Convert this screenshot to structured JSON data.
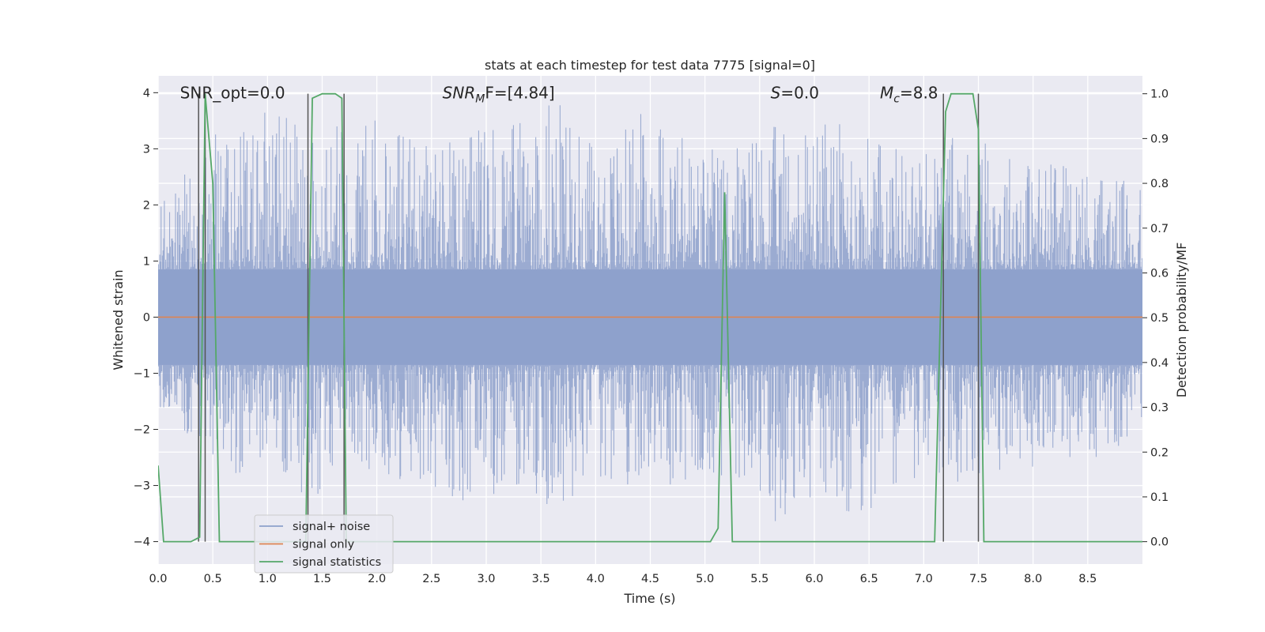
{
  "chart_data": {
    "type": "line",
    "title": "stats at each timestep for test data 7775 [signal=0]",
    "xlabel": "Time (s)",
    "ylabel_left": "Whitened strain",
    "ylabel_right": "Detection probability/MF",
    "xlim": [
      0.0,
      9.0
    ],
    "ylim_left": [
      -4.4,
      4.3
    ],
    "ylim_right": [
      -0.05,
      1.04
    ],
    "xticks": [
      0.0,
      0.5,
      1.0,
      1.5,
      2.0,
      2.5,
      3.0,
      3.5,
      4.0,
      4.5,
      5.0,
      5.5,
      6.0,
      6.5,
      7.0,
      7.5,
      8.0,
      8.5
    ],
    "xtick_labels": [
      "0.0",
      "0.5",
      "1.0",
      "1.5",
      "2.0",
      "2.5",
      "3.0",
      "3.5",
      "4.0",
      "4.5",
      "5.0",
      "5.5",
      "6.0",
      "6.5",
      "7.0",
      "7.5",
      "8.0",
      "8.5"
    ],
    "yticks_left": [
      -4,
      -3,
      -2,
      -1,
      0,
      1,
      2,
      3,
      4
    ],
    "ytick_labels_left": [
      "−4",
      "−3",
      "−2",
      "−1",
      "0",
      "1",
      "2",
      "3",
      "4"
    ],
    "yticks_right": [
      0.0,
      0.1,
      0.2,
      0.3,
      0.4,
      0.5,
      0.6,
      0.7,
      0.8,
      0.9,
      1.0
    ],
    "ytick_labels_right": [
      "0.0",
      "0.1",
      "0.2",
      "0.3",
      "0.4",
      "0.5",
      "0.6",
      "0.7",
      "0.8",
      "0.9",
      "1.0"
    ],
    "grid": true,
    "legend_position": "lower-left",
    "annotations": [
      {
        "text": "SNR_opt=0.0",
        "x": 0.2,
        "y": 4.0
      },
      {
        "base": "SNR",
        "sub": "M",
        "rest": "F=[4.84]",
        "x": 2.6,
        "y": 4.0
      },
      {
        "base": "S",
        "sub": "",
        "rest": "=0.0",
        "x": 5.6,
        "y": 4.0
      },
      {
        "base": "M",
        "sub": "c",
        "rest": "=8.8",
        "x": 6.6,
        "y": 4.0
      }
    ],
    "series": [
      {
        "name": "signal+ noise",
        "color": "#8da0cb",
        "axis": "left",
        "envelope": {
          "upper": [
            [
              0.0,
              2.2
            ],
            [
              0.1,
              2.4
            ],
            [
              0.5,
              3.3
            ],
            [
              1.0,
              3.7
            ],
            [
              1.4,
              3.4
            ],
            [
              2.0,
              3.6
            ],
            [
              2.5,
              3.0
            ],
            [
              3.0,
              3.4
            ],
            [
              3.3,
              3.5
            ],
            [
              3.6,
              4.0
            ],
            [
              4.0,
              3.0
            ],
            [
              4.5,
              3.8
            ],
            [
              4.8,
              3.3
            ],
            [
              5.2,
              3.0
            ],
            [
              5.5,
              3.5
            ],
            [
              5.9,
              3.3
            ],
            [
              6.0,
              3.6
            ],
            [
              6.5,
              3.3
            ],
            [
              6.9,
              3.0
            ],
            [
              7.3,
              3.3
            ],
            [
              7.8,
              3.0
            ],
            [
              8.3,
              2.8
            ],
            [
              8.9,
              2.4
            ]
          ],
          "lower": [
            [
              0.0,
              -1.6
            ],
            [
              0.3,
              -2.2
            ],
            [
              0.7,
              -2.9
            ],
            [
              1.0,
              -2.4
            ],
            [
              1.4,
              -3.4
            ],
            [
              1.8,
              -2.6
            ],
            [
              2.2,
              -3.0
            ],
            [
              2.6,
              -3.2
            ],
            [
              2.8,
              -3.9
            ],
            [
              3.2,
              -3.0
            ],
            [
              3.6,
              -3.4
            ],
            [
              4.0,
              -3.0
            ],
            [
              4.6,
              -3.2
            ],
            [
              5.0,
              -2.8
            ],
            [
              5.5,
              -3.2
            ],
            [
              5.7,
              -4.0
            ],
            [
              6.0,
              -3.4
            ],
            [
              6.5,
              -3.5
            ],
            [
              6.9,
              -3.0
            ],
            [
              7.3,
              -3.0
            ],
            [
              7.8,
              -2.7
            ],
            [
              8.3,
              -2.7
            ],
            [
              8.9,
              -2.3
            ]
          ]
        }
      },
      {
        "name": "signal only",
        "color": "#dd8452",
        "axis": "left",
        "points": [
          [
            0.0,
            0.0
          ],
          [
            9.0,
            0.0
          ]
        ]
      },
      {
        "name": "signal statistics",
        "color": "#55a868",
        "axis": "right",
        "points": [
          [
            0.0,
            0.17
          ],
          [
            0.05,
            0.0
          ],
          [
            0.1,
            0.0
          ],
          [
            0.3,
            0.0
          ],
          [
            0.38,
            0.01
          ],
          [
            0.43,
            1.0
          ],
          [
            0.5,
            0.8
          ],
          [
            0.56,
            0.0
          ],
          [
            1.35,
            0.0
          ],
          [
            1.38,
            0.5
          ],
          [
            1.41,
            0.99
          ],
          [
            1.5,
            1.0
          ],
          [
            1.62,
            1.0
          ],
          [
            1.68,
            0.99
          ],
          [
            1.72,
            0.0
          ],
          [
            5.05,
            0.0
          ],
          [
            5.12,
            0.03
          ],
          [
            5.18,
            0.78
          ],
          [
            5.25,
            0.0
          ],
          [
            7.1,
            0.0
          ],
          [
            7.2,
            0.96
          ],
          [
            7.25,
            1.0
          ],
          [
            7.45,
            1.0
          ],
          [
            7.5,
            0.92
          ],
          [
            7.55,
            0.0
          ],
          [
            9.0,
            0.0
          ]
        ]
      }
    ],
    "vertical_lines": [
      0.37,
      0.43,
      1.37,
      1.7,
      7.18,
      7.5
    ]
  }
}
